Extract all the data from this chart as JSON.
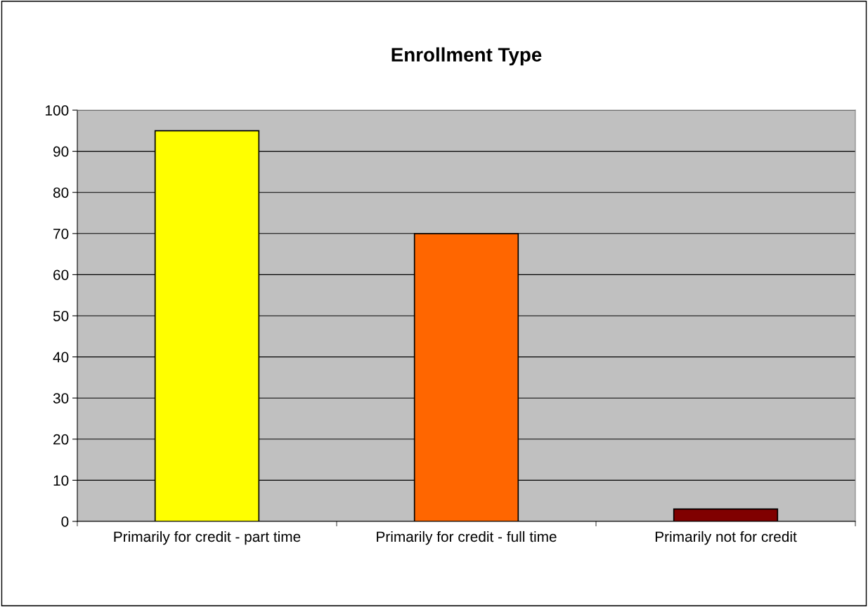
{
  "chart_data": {
    "type": "bar",
    "title": "Enrollment Type",
    "categories": [
      "Primarily for credit - part time",
      "Primarily for credit - full time",
      "Primarily not for credit"
    ],
    "values": [
      95,
      70,
      3
    ],
    "colors": [
      "#ffff00",
      "#ff6600",
      "#800000"
    ],
    "ylim": [
      0,
      100
    ],
    "yticks": [
      0,
      10,
      20,
      30,
      40,
      50,
      60,
      70,
      80,
      90,
      100
    ],
    "grid": "y",
    "legend": false
  }
}
